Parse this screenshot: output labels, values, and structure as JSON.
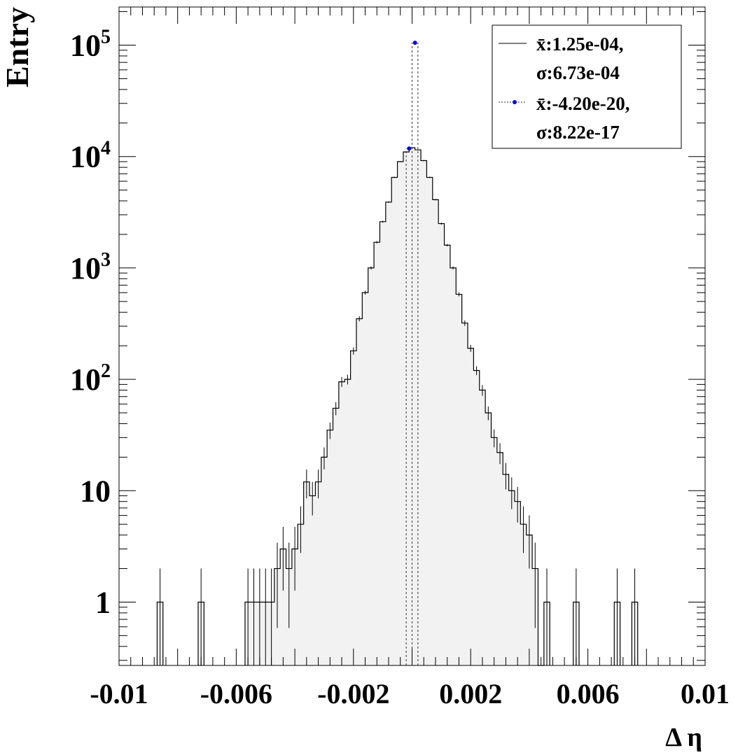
{
  "chart_data": {
    "type": "histogram",
    "xlabel": "Δ η",
    "ylabel": "Entry",
    "xlim": [
      -0.01,
      0.01
    ],
    "ylim": [
      0.27,
      220000
    ],
    "y_scale": "log",
    "x_ticks": [
      {
        "value": -0.01,
        "label": "-0.01"
      },
      {
        "value": -0.006,
        "label": "-0.006"
      },
      {
        "value": -0.002,
        "label": "-0.002"
      },
      {
        "value": 0.002,
        "label": "0.002"
      },
      {
        "value": 0.006,
        "label": "0.006"
      },
      {
        "value": 0.01,
        "label": "0.01"
      }
    ],
    "y_ticks": [
      {
        "value": 1,
        "label": "1",
        "base": "1",
        "exp": ""
      },
      {
        "value": 10,
        "label": "10",
        "base": "10",
        "exp": ""
      },
      {
        "value": 100,
        "label": "10^2",
        "base": "10",
        "exp": "2"
      },
      {
        "value": 1000,
        "label": "10^3",
        "base": "10",
        "exp": "3"
      },
      {
        "value": 10000,
        "label": "10^4",
        "base": "10",
        "exp": "4"
      },
      {
        "value": 100000,
        "label": "10^5",
        "base": "10",
        "exp": "5"
      }
    ],
    "series": [
      {
        "legend_mean": "x̄:1.25e-04,",
        "legend_sigma": "σ:6.73e-04",
        "style": "solid-step-with-errors",
        "color": "#000000",
        "fill": "#f2f2f2",
        "bin_width": 0.0002,
        "bins": [
          {
            "x": -0.0086,
            "y": 1
          },
          {
            "x": -0.0072,
            "y": 1
          },
          {
            "x": -0.0056,
            "y": 1
          },
          {
            "x": -0.0054,
            "y": 1
          },
          {
            "x": -0.0052,
            "y": 1
          },
          {
            "x": -0.005,
            "y": 1
          },
          {
            "x": -0.0048,
            "y": 1
          },
          {
            "x": -0.0046,
            "y": 2
          },
          {
            "x": -0.0044,
            "y": 3
          },
          {
            "x": -0.0042,
            "y": 2
          },
          {
            "x": -0.004,
            "y": 3
          },
          {
            "x": -0.0038,
            "y": 5
          },
          {
            "x": -0.0036,
            "y": 12
          },
          {
            "x": -0.0034,
            "y": 9
          },
          {
            "x": -0.0032,
            "y": 12
          },
          {
            "x": -0.003,
            "y": 20
          },
          {
            "x": -0.0028,
            "y": 35
          },
          {
            "x": -0.0026,
            "y": 55
          },
          {
            "x": -0.0024,
            "y": 95
          },
          {
            "x": -0.0022,
            "y": 100
          },
          {
            "x": -0.002,
            "y": 180
          },
          {
            "x": -0.0018,
            "y": 350
          },
          {
            "x": -0.0016,
            "y": 600
          },
          {
            "x": -0.0014,
            "y": 1000
          },
          {
            "x": -0.0012,
            "y": 1700
          },
          {
            "x": -0.001,
            "y": 2600
          },
          {
            "x": -0.0008,
            "y": 3900
          },
          {
            "x": -0.0006,
            "y": 6500
          },
          {
            "x": -0.0004,
            "y": 9000
          },
          {
            "x": -0.0002,
            "y": 11000
          },
          {
            "x": 0.0,
            "y": 12000
          },
          {
            "x": 0.0002,
            "y": 11500
          },
          {
            "x": 0.0004,
            "y": 9200
          },
          {
            "x": 0.0006,
            "y": 6500
          },
          {
            "x": 0.0008,
            "y": 4100
          },
          {
            "x": 0.001,
            "y": 2500
          },
          {
            "x": 0.0012,
            "y": 1600
          },
          {
            "x": 0.0014,
            "y": 1000
          },
          {
            "x": 0.0016,
            "y": 580
          },
          {
            "x": 0.0018,
            "y": 320
          },
          {
            "x": 0.002,
            "y": 190
          },
          {
            "x": 0.0022,
            "y": 120
          },
          {
            "x": 0.0024,
            "y": 80
          },
          {
            "x": 0.0026,
            "y": 50
          },
          {
            "x": 0.0028,
            "y": 30
          },
          {
            "x": 0.003,
            "y": 22
          },
          {
            "x": 0.0032,
            "y": 14
          },
          {
            "x": 0.0034,
            "y": 10
          },
          {
            "x": 0.0036,
            "y": 8
          },
          {
            "x": 0.0038,
            "y": 5
          },
          {
            "x": 0.004,
            "y": 4
          },
          {
            "x": 0.0042,
            "y": 2
          },
          {
            "x": 0.0044,
            "y": 0
          },
          {
            "x": 0.0046,
            "y": 1
          },
          {
            "x": 0.0056,
            "y": 1
          },
          {
            "x": 0.007,
            "y": 1
          },
          {
            "x": 0.0076,
            "y": 1
          }
        ]
      },
      {
        "legend_mean": "x̄:-4.20e-20,",
        "legend_sigma": "σ:8.22e-17",
        "style": "dotted-with-markers",
        "color": "#333333",
        "marker_color": "#0000dd",
        "x_edges": [
          -0.0002,
          0.0,
          0.0002
        ],
        "points": [
          {
            "x": -0.0001,
            "y": 11800
          },
          {
            "x": 0.0001,
            "y": 105000
          }
        ]
      }
    ]
  }
}
